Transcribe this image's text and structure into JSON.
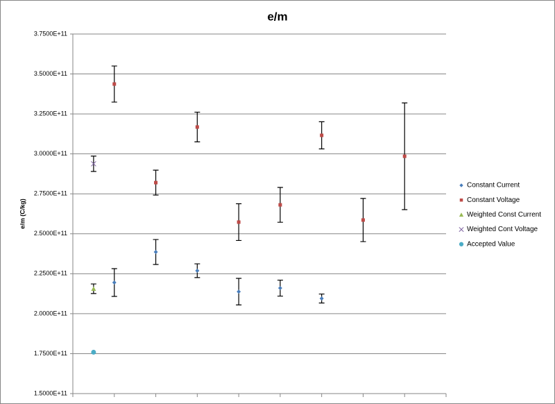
{
  "chart_data": {
    "type": "scatter",
    "title": "e/m",
    "ylabel": "e/m (C/kg)",
    "xlim": [
      0,
      9
    ],
    "xticks": [
      0,
      1,
      2,
      3,
      4,
      5,
      6,
      7,
      8,
      9
    ],
    "ylim": [
      150000000000,
      375000000000
    ],
    "yticks": [
      {
        "value": 150000000000,
        "label": "1.5000E+11"
      },
      {
        "value": 175000000000,
        "label": "1.7500E+11"
      },
      {
        "value": 200000000000,
        "label": "2.0000E+11"
      },
      {
        "value": 225000000000,
        "label": "2.2500E+11"
      },
      {
        "value": 250000000000,
        "label": "2.5000E+11"
      },
      {
        "value": 275000000000,
        "label": "2.7500E+11"
      },
      {
        "value": 300000000000,
        "label": "3.0000E+11"
      },
      {
        "value": 325000000000,
        "label": "3.2500E+11"
      },
      {
        "value": 350000000000,
        "label": "3.5000E+11"
      },
      {
        "value": 375000000000,
        "label": "3.7500E+11"
      }
    ],
    "grid": true,
    "legend": "right",
    "series": [
      {
        "name": "Constant Current",
        "color": "#4a7ebb",
        "marker": "diamond",
        "x": [
          1,
          2,
          3,
          4,
          5,
          6
        ],
        "values": [
          219500000000,
          238600000000,
          226900000000,
          213800000000,
          216000000000,
          209500000000
        ],
        "errors": [
          8700000000,
          7800000000,
          4300000000,
          8300000000,
          5000000000,
          2800000000
        ]
      },
      {
        "name": "Constant Voltage",
        "color": "#be4b48",
        "marker": "square",
        "x": [
          1,
          2,
          3,
          4,
          5,
          6,
          7,
          8
        ],
        "values": [
          343700000000,
          282000000000,
          316800000000,
          257300000000,
          268100000000,
          311600000000,
          258600000000,
          298500000000
        ],
        "errors": [
          11300000000,
          7800000000,
          9300000000,
          11500000000,
          10900000000,
          8500000000,
          13500000000,
          33400000000
        ]
      },
      {
        "name": "Weighted Const Current",
        "color": "#98b954",
        "marker": "triangle",
        "x": [
          0.5
        ],
        "values": [
          215600000000
        ],
        "errors": [
          3000000000
        ]
      },
      {
        "name": "Weighted Cont Voltage",
        "color": "#7d60a0",
        "marker": "x",
        "x": [
          0.5
        ],
        "values": [
          293800000000
        ],
        "errors": [
          4800000000
        ]
      },
      {
        "name": "Accepted Value",
        "color": "#4bacc6",
        "marker": "circle",
        "x": [
          0.5
        ],
        "values": [
          175880000000
        ]
      }
    ]
  }
}
